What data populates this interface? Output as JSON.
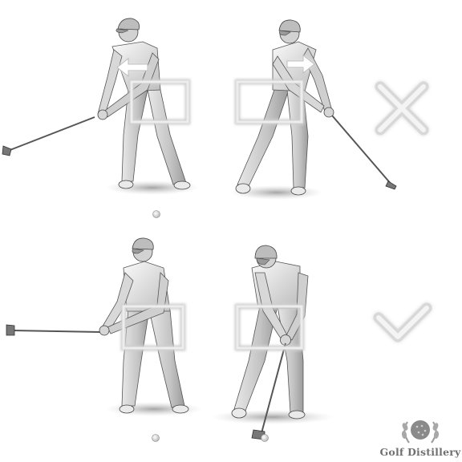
{
  "panels": {
    "top": {
      "verdict": "incorrect",
      "verdict_icon": "cross-icon"
    },
    "bottom": {
      "verdict": "correct",
      "verdict_icon": "checkmark-icon"
    }
  },
  "arrows": {
    "top_left": {
      "direction": "left",
      "icon": "left-arrow-icon"
    },
    "top_right": {
      "direction": "right",
      "icon": "right-arrow-icon"
    }
  },
  "colors": {
    "sketch": "#5a5a5a",
    "sketch_dark": "#3a3a3a",
    "hip_box": "#e4e4e4",
    "verdict": "#dddddd",
    "arrow": "#ffffff"
  },
  "logo": {
    "brand": "Golf Distillery",
    "icon": "golf-ball-laurel-icon"
  }
}
